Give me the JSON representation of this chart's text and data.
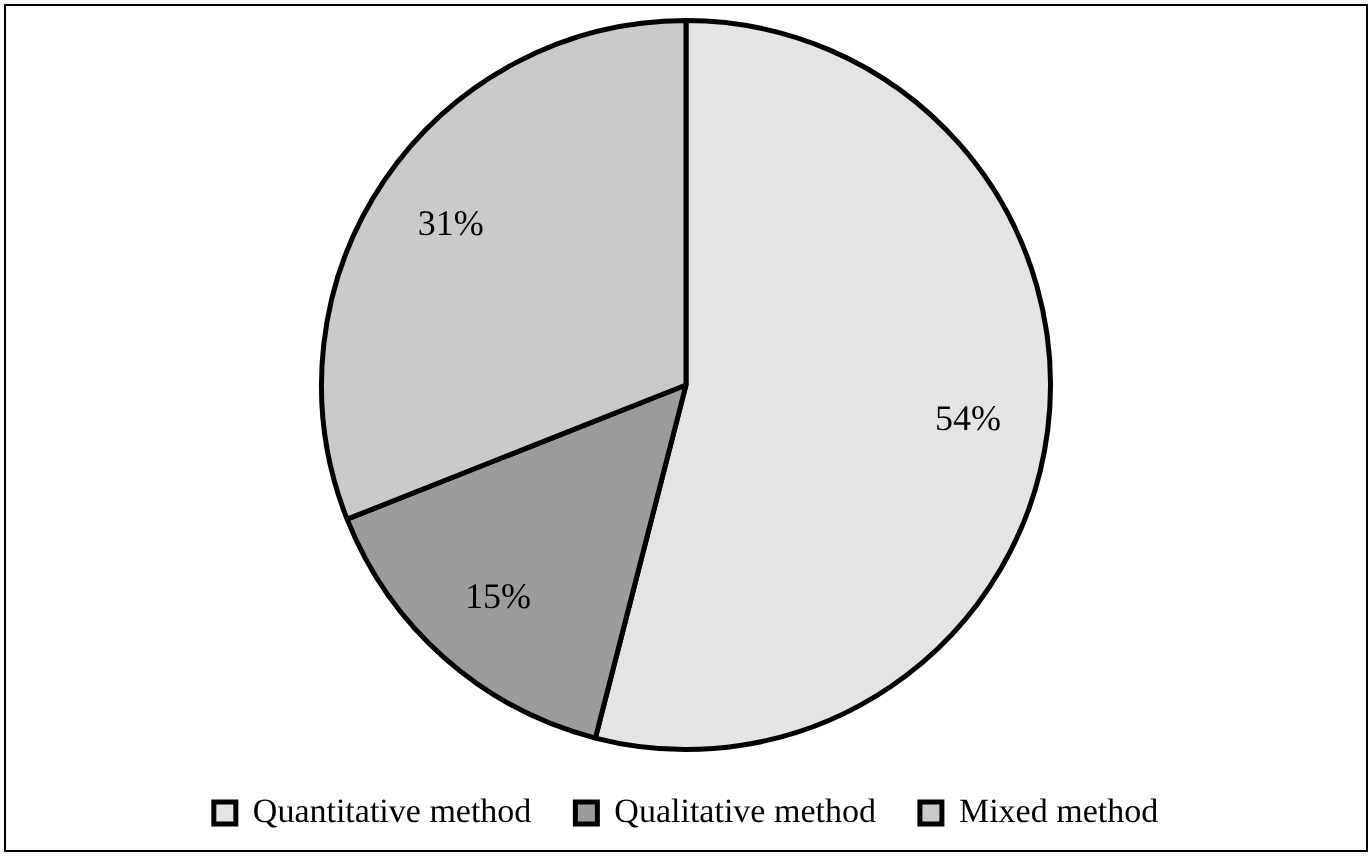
{
  "chart_data": {
    "type": "pie",
    "categories": [
      "Quantitative method",
      "Qualitative method",
      "Mixed method"
    ],
    "values": [
      54,
      15,
      31
    ],
    "colors": [
      "#e4e4e4",
      "#9c9c9c",
      "#cacaca"
    ],
    "value_labels": [
      "54%",
      "15%",
      "31%"
    ],
    "legend": "bottom"
  }
}
